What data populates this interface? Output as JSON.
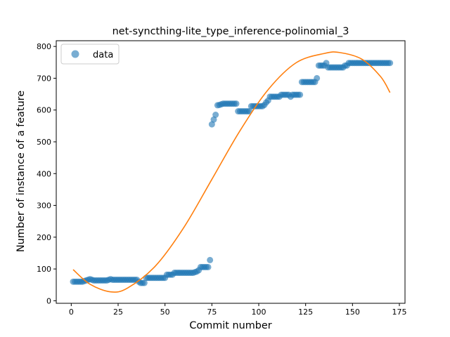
{
  "chart_data": {
    "type": "scatter",
    "title": "net-syncthing-lite_type_inference-polinomial_3",
    "xlabel": "Commit number",
    "ylabel": "Number of instance of a feature",
    "xlim": [
      -8,
      178
    ],
    "ylim": [
      -8,
      818
    ],
    "xticks": [
      0,
      25,
      50,
      75,
      100,
      125,
      150,
      175
    ],
    "yticks": [
      0,
      100,
      200,
      300,
      400,
      500,
      600,
      700,
      800
    ],
    "grid": false,
    "legend_position": "top-left",
    "series": [
      {
        "name": "data",
        "kind": "scatter",
        "color": "#1f77b4",
        "x": [
          1,
          2,
          3,
          4,
          5,
          6,
          7,
          8,
          9,
          10,
          11,
          12,
          13,
          14,
          15,
          16,
          17,
          18,
          19,
          20,
          21,
          22,
          23,
          24,
          25,
          26,
          27,
          28,
          29,
          30,
          31,
          32,
          33,
          34,
          35,
          36,
          37,
          38,
          39,
          40,
          41,
          42,
          43,
          44,
          45,
          46,
          47,
          48,
          49,
          50,
          51,
          52,
          53,
          54,
          55,
          56,
          57,
          58,
          59,
          60,
          61,
          62,
          63,
          64,
          65,
          66,
          67,
          68,
          69,
          70,
          71,
          72,
          73,
          74,
          75,
          76,
          77,
          78,
          79,
          80,
          81,
          82,
          83,
          84,
          85,
          86,
          87,
          88,
          89,
          90,
          91,
          92,
          93,
          94,
          95,
          96,
          97,
          98,
          99,
          100,
          101,
          102,
          103,
          104,
          105,
          106,
          107,
          108,
          109,
          110,
          111,
          112,
          113,
          114,
          115,
          116,
          117,
          118,
          119,
          120,
          121,
          122,
          123,
          124,
          125,
          126,
          127,
          128,
          129,
          130,
          131,
          132,
          133,
          134,
          135,
          136,
          137,
          138,
          139,
          140,
          141,
          142,
          143,
          144,
          145,
          146,
          147,
          148,
          149,
          150,
          151,
          152,
          153,
          154,
          155,
          156,
          157,
          158,
          159,
          160,
          161,
          162,
          163,
          164,
          165,
          166,
          167,
          168,
          169,
          170
        ],
        "y": [
          60,
          60,
          60,
          60,
          60,
          60,
          62,
          64,
          66,
          68,
          66,
          64,
          64,
          64,
          64,
          64,
          64,
          64,
          64,
          66,
          68,
          66,
          66,
          66,
          66,
          66,
          66,
          66,
          66,
          66,
          66,
          66,
          66,
          66,
          66,
          60,
          56,
          56,
          56,
          72,
          72,
          72,
          72,
          72,
          72,
          72,
          72,
          72,
          72,
          72,
          82,
          82,
          82,
          82,
          88,
          88,
          88,
          88,
          88,
          88,
          88,
          88,
          88,
          88,
          88,
          90,
          92,
          96,
          106,
          106,
          106,
          106,
          106,
          128,
          555,
          570,
          585,
          615,
          616,
          618,
          620,
          620,
          620,
          620,
          620,
          620,
          620,
          620,
          596,
          596,
          596,
          596,
          596,
          596,
          596,
          612,
          612,
          612,
          612,
          612,
          612,
          612,
          616,
          624,
          630,
          642,
          642,
          642,
          642,
          642,
          642,
          648,
          648,
          648,
          648,
          648,
          642,
          648,
          648,
          648,
          648,
          648,
          688,
          688,
          688,
          688,
          688,
          688,
          688,
          688,
          700,
          740,
          740,
          740,
          740,
          748,
          734,
          734,
          734,
          734,
          734,
          734,
          734,
          734,
          734,
          740,
          740,
          748,
          748,
          748,
          748,
          748,
          748,
          748,
          748,
          748,
          748,
          748,
          748,
          748,
          748,
          748,
          748,
          748,
          748,
          748,
          748,
          748,
          748,
          748
        ]
      },
      {
        "kind": "line",
        "fit": "polynomial degree 3",
        "color": "#ff7f0e",
        "x_range": [
          1,
          170
        ],
        "curve_points": [
          [
            1,
            98
          ],
          [
            10,
            52
          ],
          [
            21,
            28
          ],
          [
            30,
            40
          ],
          [
            45,
            110
          ],
          [
            60,
            230
          ],
          [
            75,
            382
          ],
          [
            90,
            535
          ],
          [
            105,
            664
          ],
          [
            120,
            749
          ],
          [
            135,
            778
          ],
          [
            143,
            781
          ],
          [
            155,
            760
          ],
          [
            165,
            705
          ],
          [
            170,
            655
          ]
        ]
      }
    ]
  }
}
